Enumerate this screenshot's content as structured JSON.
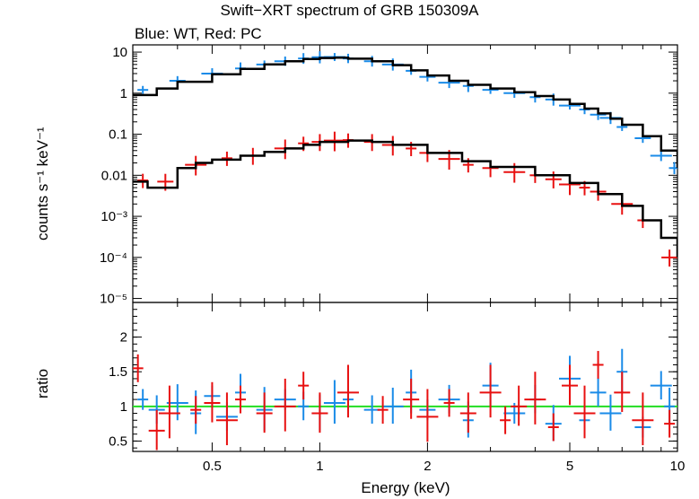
{
  "chart_data": [
    {
      "type": "scatter",
      "title": "Swift−XRT spectrum of GRB 150309A",
      "subtitle": "Blue: WT, Red: PC",
      "xlabel": "",
      "ylabel": "counts s⁻¹ keV⁻¹",
      "xscale": "log",
      "yscale": "log",
      "xlim": [
        0.3,
        10
      ],
      "ylim": [
        8e-06,
        15
      ],
      "ytick_labels": [
        "10",
        "1",
        "0.1",
        "0.01",
        "10⁻³",
        "10⁻⁴",
        "10⁻⁵"
      ],
      "series": [
        {
          "name": "WT",
          "color": "#1a8be8",
          "x": [
            0.32,
            0.4,
            0.5,
            0.6,
            0.7,
            0.8,
            0.9,
            1.0,
            1.1,
            1.2,
            1.4,
            1.6,
            1.8,
            2.0,
            2.3,
            2.6,
            3.0,
            3.5,
            4.0,
            4.5,
            5.0,
            5.5,
            6.0,
            6.5,
            7.0,
            8.0,
            9.0,
            9.8
          ],
          "y": [
            1.2,
            2.0,
            3.0,
            4.0,
            5.0,
            6.0,
            7.0,
            7.5,
            7.6,
            7.0,
            6.0,
            5.0,
            3.5,
            2.5,
            1.8,
            1.5,
            1.2,
            1.0,
            0.8,
            0.7,
            0.5,
            0.4,
            0.3,
            0.25,
            0.15,
            0.08,
            0.03,
            0.015
          ]
        },
        {
          "name": "WT model",
          "color": "#000000",
          "x": [
            0.3,
            0.35,
            0.4,
            0.5,
            0.6,
            0.7,
            0.8,
            0.9,
            1.0,
            1.1,
            1.2,
            1.4,
            1.6,
            1.8,
            2.0,
            2.3,
            2.6,
            3.0,
            3.5,
            4.0,
            4.5,
            5.0,
            5.5,
            6.0,
            6.5,
            7.0,
            8.0,
            9.0,
            10.0
          ],
          "y": [
            0.9,
            1.3,
            1.9,
            2.9,
            3.9,
            5.0,
            6.0,
            6.8,
            7.2,
            7.3,
            6.9,
            6.0,
            4.8,
            3.6,
            2.7,
            2.0,
            1.6,
            1.3,
            1.05,
            0.85,
            0.7,
            0.55,
            0.42,
            0.32,
            0.24,
            0.17,
            0.09,
            0.04,
            0.015
          ]
        },
        {
          "name": "PC",
          "color": "#e81010",
          "x": [
            0.32,
            0.37,
            0.45,
            0.55,
            0.65,
            0.8,
            0.9,
            1.0,
            1.1,
            1.2,
            1.4,
            1.6,
            1.8,
            2.0,
            2.3,
            2.6,
            3.0,
            3.5,
            4.0,
            4.5,
            5.0,
            5.5,
            6.0,
            7.0,
            8.0,
            9.5
          ],
          "y": [
            0.0075,
            0.007,
            0.018,
            0.026,
            0.03,
            0.045,
            0.06,
            0.065,
            0.07,
            0.072,
            0.065,
            0.055,
            0.045,
            0.035,
            0.025,
            0.018,
            0.015,
            0.012,
            0.01,
            0.008,
            0.006,
            0.005,
            0.004,
            0.002,
            0.0008,
            0.0001
          ]
        },
        {
          "name": "PC model",
          "color": "#000000",
          "x": [
            0.3,
            0.33,
            0.37,
            0.4,
            0.45,
            0.5,
            0.6,
            0.7,
            0.8,
            0.9,
            1.0,
            1.2,
            1.4,
            1.6,
            2.0,
            2.5,
            3.0,
            4.0,
            5.0,
            6.0,
            7.0,
            8.0,
            9.0,
            10.0
          ],
          "y": [
            0.007,
            0.005,
            0.005,
            0.015,
            0.02,
            0.024,
            0.03,
            0.037,
            0.045,
            0.055,
            0.065,
            0.07,
            0.065,
            0.055,
            0.035,
            0.022,
            0.016,
            0.01,
            0.0065,
            0.0035,
            0.0018,
            0.0008,
            0.0003,
            0.0001
          ]
        }
      ]
    },
    {
      "type": "scatter",
      "title": "",
      "xlabel": "Energy (keV)",
      "ylabel": "ratio",
      "xscale": "log",
      "xlim": [
        0.3,
        10
      ],
      "ylim": [
        0.35,
        2.5
      ],
      "xtick_labels": [
        "0.5",
        "1",
        "2",
        "5",
        "10"
      ],
      "ytick_labels": [
        "0.5",
        "1",
        "1.5",
        "2"
      ],
      "reference_line": {
        "y": 1,
        "color": "#22dd22"
      },
      "series": [
        {
          "name": "WT",
          "color": "#1a8be8",
          "x": [
            0.32,
            0.35,
            0.4,
            0.45,
            0.5,
            0.55,
            0.6,
            0.7,
            0.8,
            0.9,
            1.0,
            1.1,
            1.2,
            1.4,
            1.6,
            1.8,
            2.0,
            2.3,
            2.6,
            3.0,
            3.5,
            4.0,
            4.5,
            5.0,
            5.5,
            6.0,
            6.5,
            7.0,
            8.0,
            9.0,
            9.5
          ],
          "y": [
            1.1,
            0.95,
            1.05,
            0.9,
            1.15,
            0.85,
            1.2,
            0.95,
            1.1,
            1.0,
            0.9,
            1.05,
            1.1,
            0.95,
            1.0,
            1.2,
            0.95,
            1.1,
            0.8,
            1.3,
            0.9,
            1.1,
            0.75,
            1.4,
            0.8,
            1.2,
            0.9,
            1.5,
            0.7,
            1.3,
            1.0
          ]
        },
        {
          "name": "PC",
          "color": "#e81010",
          "x": [
            0.31,
            0.35,
            0.38,
            0.45,
            0.5,
            0.55,
            0.6,
            0.7,
            0.8,
            0.9,
            1.0,
            1.2,
            1.5,
            1.8,
            2.0,
            2.3,
            2.6,
            3.0,
            3.3,
            3.6,
            4.0,
            4.5,
            5.0,
            5.5,
            6.0,
            7.0,
            8.0,
            9.5
          ],
          "y": [
            1.55,
            0.65,
            0.9,
            0.95,
            1.05,
            0.8,
            1.1,
            0.9,
            1.0,
            1.3,
            0.9,
            1.2,
            0.95,
            1.1,
            0.85,
            1.05,
            0.9,
            1.2,
            0.8,
            1.0,
            1.1,
            0.7,
            1.3,
            0.9,
            1.6,
            1.2,
            0.8,
            0.75
          ]
        }
      ]
    }
  ]
}
